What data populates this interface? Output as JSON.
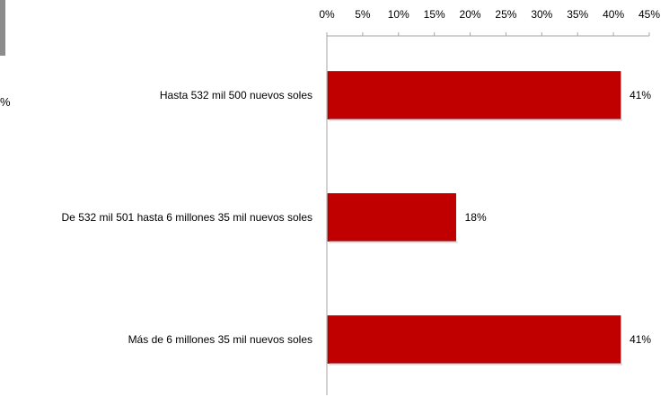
{
  "chart_data": {
    "type": "bar",
    "orientation": "horizontal",
    "axis_position": "top",
    "categories": [
      "Hasta 532 mil 500 nuevos soles",
      "De 532 mil 501 hasta 6 millones 35 mil nuevos soles",
      "Más de 6 millones 35 mil nuevos soles"
    ],
    "values": [
      41,
      18,
      41
    ],
    "data_labels": [
      "41%",
      "18%",
      "41%"
    ],
    "xlim": [
      0,
      45
    ],
    "ticks": [
      "0%",
      "5%",
      "10%",
      "15%",
      "20%",
      "25%",
      "30%",
      "35%",
      "40%",
      "45%"
    ],
    "grid": false,
    "bar_color": "#c00000"
  },
  "fragments": {
    "left_percent": "%"
  }
}
